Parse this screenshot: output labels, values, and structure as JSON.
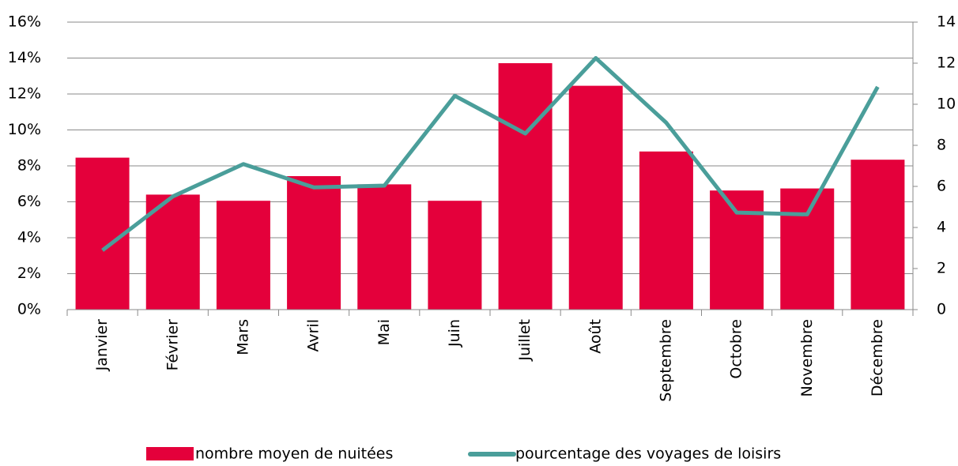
{
  "chart_data": {
    "type": "bar-line",
    "categories": [
      "Janvier",
      "Février",
      "Mars",
      "Avril",
      "Mai",
      "Juin",
      "Juillet",
      "Août",
      "Septembre",
      "Octobre",
      "Novembre",
      "Décembre"
    ],
    "series": [
      {
        "name": "nombre moyen de nuitées",
        "type": "bar",
        "axis": "y2",
        "color": "#e4003b",
        "values": [
          7.4,
          5.6,
          5.3,
          6.5,
          6.1,
          5.3,
          12.0,
          10.9,
          7.7,
          5.8,
          5.9,
          7.3
        ]
      },
      {
        "name": "pourcentage des voyages de loisirs",
        "type": "line",
        "axis": "y",
        "color": "#4a9e9a",
        "values": [
          3.3,
          6.3,
          8.1,
          6.8,
          6.9,
          11.9,
          9.8,
          14.0,
          10.4,
          5.4,
          5.3,
          12.4
        ]
      }
    ],
    "ylim": [
      0,
      16
    ],
    "yticks": [
      {
        "value": 0,
        "label": "0%"
      },
      {
        "value": 2,
        "label": "2%"
      },
      {
        "value": 4,
        "label": "4%"
      },
      {
        "value": 6,
        "label": "6%"
      },
      {
        "value": 8,
        "label": "8%"
      },
      {
        "value": 10,
        "label": "10%"
      },
      {
        "value": 12,
        "label": "12%"
      },
      {
        "value": 14,
        "label": "14%"
      },
      {
        "value": 16,
        "label": "16%"
      }
    ],
    "y2lim": [
      0,
      14
    ],
    "y2ticks": [
      0,
      2,
      4,
      6,
      8,
      10,
      12,
      14
    ],
    "grid": true
  }
}
